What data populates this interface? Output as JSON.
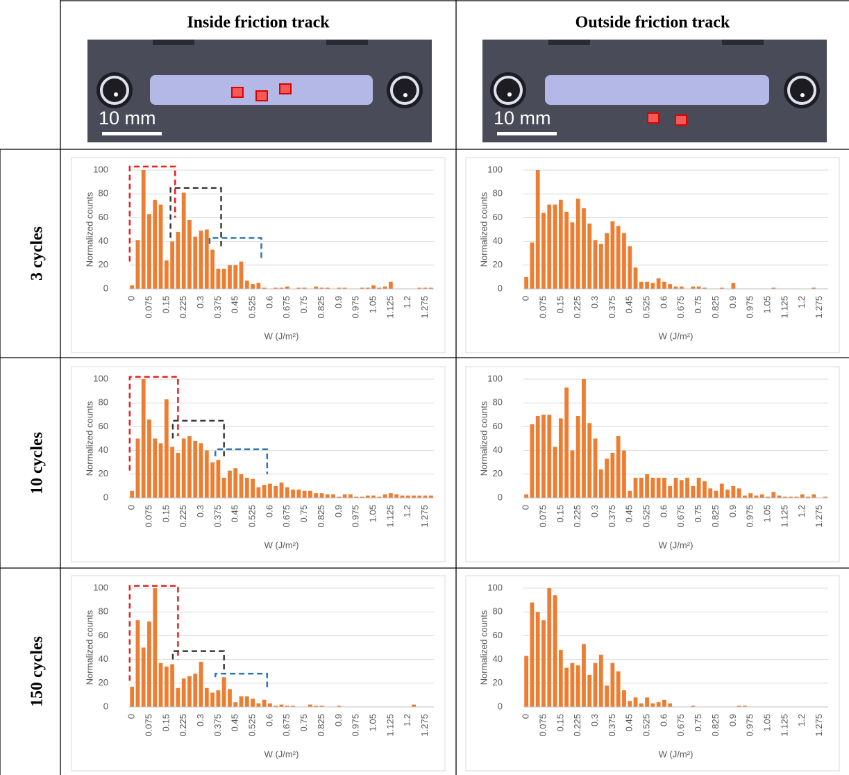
{
  "columns": [
    "Inside friction track",
    "Outside friction track"
  ],
  "rows": [
    "3 cycles",
    "10 cycles",
    "150 cycles"
  ],
  "photos": [
    {
      "scale_label": "10 mm"
    },
    {
      "scale_label": "10 mm"
    }
  ],
  "chart_data": [
    {
      "type": "bar",
      "ylabel": "Normalized counts",
      "xlabel": "W (J/m²)",
      "color": "#ed7d31",
      "grid": true,
      "ylim": [
        0,
        100
      ],
      "yticks": [
        0,
        20,
        40,
        60,
        80,
        100
      ],
      "categories": [
        "0",
        null,
        null,
        "0.075",
        null,
        null,
        "0.15",
        null,
        null,
        "0.225",
        null,
        null,
        "0.3",
        null,
        null,
        "0.375",
        null,
        null,
        "0.45",
        null,
        null,
        "0.525",
        null,
        null,
        "0.6",
        null,
        null,
        "0.675",
        null,
        null,
        "0.75",
        null,
        null,
        "0.825",
        null,
        null,
        "0.9",
        null,
        null,
        "0.975",
        null,
        null,
        "1.05",
        null,
        null,
        "1.125",
        null,
        null,
        "1.2",
        null,
        null,
        "1.275",
        null
      ],
      "values": [
        3,
        41,
        100,
        63,
        75,
        71,
        24,
        40,
        48,
        81,
        58,
        44,
        49,
        50,
        33,
        17,
        17,
        20,
        20,
        23,
        7,
        4,
        5,
        1,
        0,
        1,
        1,
        2,
        0,
        1,
        1,
        0,
        2,
        1,
        1,
        0,
        1,
        1,
        0,
        0,
        1,
        1,
        3,
        1,
        2,
        6,
        0,
        0,
        0,
        0,
        1,
        1,
        1
      ]
    },
    {
      "type": "bar",
      "ylabel": "Normalized counts",
      "xlabel": "W (J/m²)",
      "color": "#ed7d31",
      "grid": true,
      "ylim": [
        0,
        100
      ],
      "yticks": [
        0,
        20,
        40,
        60,
        80,
        100
      ],
      "categories": [
        "0",
        null,
        null,
        "0.075",
        null,
        null,
        "0.15",
        null,
        null,
        "0.225",
        null,
        null,
        "0.3",
        null,
        null,
        "0.375",
        null,
        null,
        "0.45",
        null,
        null,
        "0.525",
        null,
        null,
        "0.6",
        null,
        null,
        "0.675",
        null,
        null,
        "0.75",
        null,
        null,
        "0.825",
        null,
        null,
        "0.9",
        null,
        null,
        "0.975",
        null,
        null,
        "1.05",
        null,
        null,
        "1.125",
        null,
        null,
        "1.2",
        null,
        null,
        "1.275",
        null
      ],
      "values": [
        10,
        39,
        100,
        64,
        71,
        71,
        75,
        65,
        56,
        76,
        68,
        55,
        41,
        38,
        47,
        57,
        53,
        47,
        36,
        18,
        6,
        6,
        5,
        9,
        6,
        4,
        2,
        2,
        0,
        2,
        2,
        1,
        0,
        0,
        1,
        0,
        5,
        0,
        0,
        0,
        0,
        0,
        0,
        1,
        0,
        0,
        0,
        0,
        0,
        0,
        1,
        0,
        0
      ]
    },
    {
      "type": "bar",
      "ylabel": "Normalized counts",
      "xlabel": "W (J/m²)",
      "color": "#ed7d31",
      "grid": true,
      "ylim": [
        0,
        100
      ],
      "yticks": [
        0,
        20,
        40,
        60,
        80,
        100
      ],
      "categories": [
        "0",
        null,
        null,
        "0.075",
        null,
        null,
        "0.15",
        null,
        null,
        "0.225",
        null,
        null,
        "0.3",
        null,
        null,
        "0.375",
        null,
        null,
        "0.45",
        null,
        null,
        "0.525",
        null,
        null,
        "0.6",
        null,
        null,
        "0.675",
        null,
        null,
        "0.75",
        null,
        null,
        "0.825",
        null,
        null,
        "0.9",
        null,
        null,
        "0.975",
        null,
        null,
        "1.05",
        null,
        null,
        "1.125",
        null,
        null,
        "1.2",
        null,
        null,
        "1.275",
        null
      ],
      "values": [
        6,
        50,
        100,
        66,
        50,
        46,
        83,
        43,
        38,
        50,
        52,
        48,
        46,
        40,
        30,
        32,
        17,
        23,
        25,
        20,
        17,
        16,
        9,
        11,
        12,
        10,
        13,
        9,
        7,
        7,
        6,
        6,
        4,
        4,
        3,
        3,
        1,
        3,
        3,
        1,
        1,
        2,
        2,
        1,
        3,
        4,
        3,
        2,
        2,
        2,
        2,
        2,
        2
      ]
    },
    {
      "type": "bar",
      "ylabel": "Normalized counts",
      "xlabel": "W (J/m²)",
      "color": "#ed7d31",
      "grid": true,
      "ylim": [
        0,
        100
      ],
      "yticks": [
        0,
        20,
        40,
        60,
        80,
        100
      ],
      "categories": [
        "0",
        null,
        null,
        "0.075",
        null,
        null,
        "0.15",
        null,
        null,
        "0.225",
        null,
        null,
        "0.3",
        null,
        null,
        "0.375",
        null,
        null,
        "0.45",
        null,
        null,
        "0.525",
        null,
        null,
        "0.6",
        null,
        null,
        "0.675",
        null,
        null,
        "0.75",
        null,
        null,
        "0.825",
        null,
        null,
        "0.9",
        null,
        null,
        "0.975",
        null,
        null,
        "1.05",
        null,
        null,
        "1.125",
        null,
        null,
        "1.2",
        null,
        null,
        "1.275",
        null
      ],
      "values": [
        3,
        62,
        69,
        70,
        70,
        43,
        67,
        93,
        40,
        69,
        100,
        63,
        50,
        24,
        33,
        38,
        52,
        40,
        6,
        17,
        17,
        20,
        17,
        17,
        17,
        10,
        17,
        15,
        17,
        10,
        17,
        14,
        8,
        6,
        12,
        7,
        10,
        8,
        2,
        4,
        2,
        3,
        1,
        5,
        2,
        1,
        1,
        1,
        3,
        1,
        3,
        0,
        1
      ]
    },
    {
      "type": "bar",
      "ylabel": "Normalized counts",
      "xlabel": "W (J/m²)",
      "color": "#ed7d31",
      "grid": true,
      "ylim": [
        0,
        100
      ],
      "yticks": [
        0,
        20,
        40,
        60,
        80,
        100
      ],
      "categories": [
        "0",
        null,
        null,
        "0.075",
        null,
        null,
        "0.15",
        null,
        null,
        "0.225",
        null,
        null,
        "0.3",
        null,
        null,
        "0.375",
        null,
        null,
        "0.45",
        null,
        null,
        "0.525",
        null,
        null,
        "0.6",
        null,
        null,
        "0.675",
        null,
        null,
        "0.75",
        null,
        null,
        "0.825",
        null,
        null,
        "0.9",
        null,
        null,
        "0.975",
        null,
        null,
        "1.05",
        null,
        null,
        "1.125",
        null,
        null,
        "1.2",
        null,
        null,
        "1.275",
        null
      ],
      "values": [
        17,
        73,
        50,
        72,
        100,
        37,
        34,
        36,
        16,
        24,
        26,
        28,
        38,
        16,
        12,
        14,
        25,
        15,
        4,
        9,
        9,
        7,
        3,
        6,
        3,
        1,
        2,
        1,
        1,
        0,
        0,
        2,
        1,
        1,
        0,
        0,
        1,
        0,
        0,
        0,
        0,
        0,
        0,
        0,
        0,
        0,
        0,
        0,
        0,
        2,
        0,
        0,
        0
      ]
    },
    {
      "type": "bar",
      "ylabel": "Normalized counts",
      "xlabel": "W (J/m²)",
      "color": "#ed7d31",
      "grid": true,
      "ylim": [
        0,
        100
      ],
      "yticks": [
        0,
        20,
        40,
        60,
        80,
        100
      ],
      "categories": [
        "0",
        null,
        null,
        "0.075",
        null,
        null,
        "0.15",
        null,
        null,
        "0.225",
        null,
        null,
        "0.3",
        null,
        null,
        "0.375",
        null,
        null,
        "0.45",
        null,
        null,
        "0.525",
        null,
        null,
        "0.6",
        null,
        null,
        "0.675",
        null,
        null,
        "0.75",
        null,
        null,
        "0.825",
        null,
        null,
        "0.9",
        null,
        null,
        "0.975",
        null,
        null,
        "1.05",
        null,
        null,
        "1.125",
        null,
        null,
        "1.2",
        null,
        null,
        "1.275",
        null
      ],
      "values": [
        43,
        88,
        80,
        73,
        100,
        94,
        48,
        33,
        37,
        35,
        53,
        27,
        37,
        44,
        18,
        37,
        30,
        14,
        5,
        8,
        3,
        8,
        3,
        4,
        6,
        3,
        0,
        0,
        0,
        1,
        0,
        0,
        0,
        0,
        0,
        0,
        0,
        1,
        1,
        0,
        0,
        0,
        0,
        0,
        0,
        0,
        0,
        0,
        0,
        0,
        0,
        0,
        0
      ]
    }
  ]
}
